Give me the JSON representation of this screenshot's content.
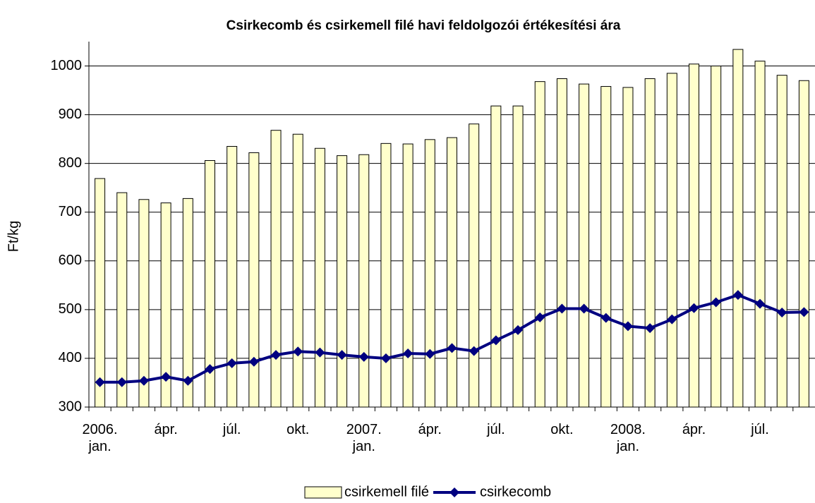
{
  "chart_data": {
    "type": "bar_line",
    "title": "Csirkecomb és csirkemell filé havi feldolgozói értékesítési ára",
    "y_label": "Ft/kg",
    "categories": [
      "2006. jan.",
      null,
      null,
      "ápr.",
      null,
      null,
      "júl.",
      null,
      null,
      "okt.",
      null,
      null,
      "2007. jan.",
      null,
      null,
      "ápr.",
      null,
      null,
      "júl.",
      null,
      null,
      "okt.",
      null,
      null,
      "2008. jan.",
      null,
      null,
      "ápr.",
      null,
      null,
      "júl.",
      null,
      null
    ],
    "series": [
      {
        "name": "csirkemell filé",
        "type": "bar",
        "color": "#ffffcc",
        "values": [
          769,
          740,
          726,
          719,
          728,
          806,
          835,
          822,
          868,
          860,
          831,
          816,
          818,
          841,
          840,
          849,
          853,
          881,
          918,
          918,
          968,
          974,
          963,
          958,
          956,
          974,
          985,
          1004,
          1000,
          1034,
          1010,
          981,
          970
        ]
      },
      {
        "name": "csirkecomb",
        "type": "line",
        "color": "#000080",
        "values": [
          351,
          351,
          354,
          362,
          354,
          378,
          390,
          393,
          407,
          414,
          412,
          407,
          403,
          400,
          410,
          409,
          421,
          415,
          437,
          458,
          484,
          502,
          502,
          483,
          466,
          462,
          480,
          503,
          515,
          530,
          512,
          494,
          495
        ]
      }
    ],
    "ylim": [
      300,
      1050
    ],
    "yticks": [
      300,
      400,
      500,
      600,
      700,
      800,
      900,
      1000
    ],
    "grid": true,
    "legend": "bottom"
  }
}
